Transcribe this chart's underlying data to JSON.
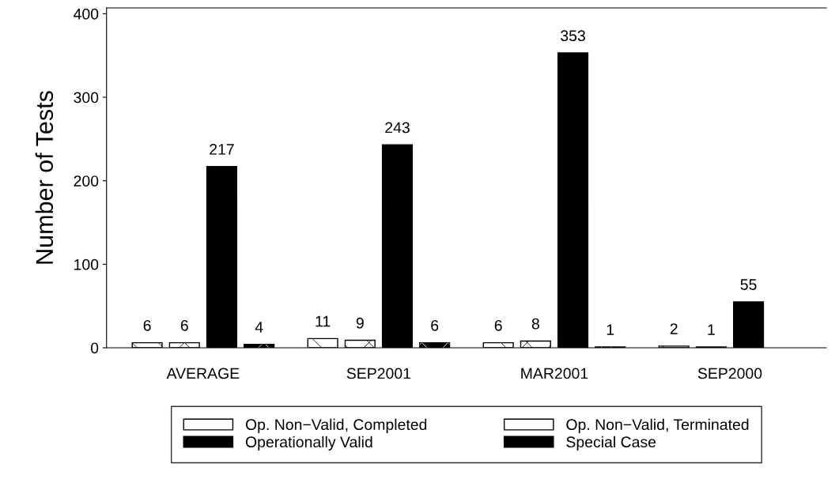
{
  "chart_data": {
    "type": "bar",
    "ylabel": "Number of Tests",
    "categories": [
      "AVERAGE",
      "SEP2001",
      "MAR2001",
      "SEP2000"
    ],
    "series": [
      {
        "name": "Op. Non−Valid, Completed",
        "color": "#ffffff",
        "values": [
          6,
          11,
          6,
          2
        ]
      },
      {
        "name": "Op. Non−Valid, Terminated",
        "color": "#ffffff",
        "values": [
          6,
          9,
          8,
          1
        ]
      },
      {
        "name": "Operationally Valid",
        "color": "#000000",
        "values": [
          217,
          243,
          353,
          55
        ]
      },
      {
        "name": "Special Case",
        "color": "#000000",
        "values": [
          4,
          6,
          1,
          null
        ]
      }
    ],
    "ylim": [
      0,
      407
    ],
    "yticks": [
      0,
      100,
      200,
      300,
      400
    ],
    "data_labels": true,
    "legend": "bottom",
    "grid": false
  }
}
